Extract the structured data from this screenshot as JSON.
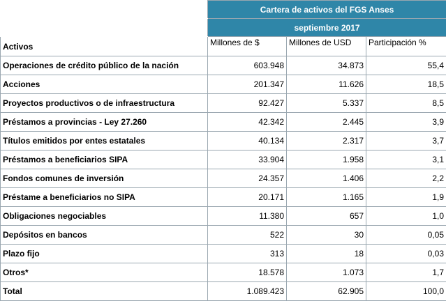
{
  "header": {
    "title": "Cartera de activos del FGS Anses",
    "period": "septiembre 2017"
  },
  "columns": {
    "label": "Activos",
    "millones_pesos": "Millones de $",
    "millones_usd": "Millones de USD",
    "participacion": "Participación %"
  },
  "rows": [
    {
      "label": "Operaciones de crédito público de la nación",
      "pesos": "603.948",
      "usd": "34.873",
      "pct": "55,4"
    },
    {
      "label": "Acciones",
      "pesos": "201.347",
      "usd": "11.626",
      "pct": "18,5"
    },
    {
      "label": "Proyectos productivos o de infraestructura",
      "pesos": "92.427",
      "usd": "5.337",
      "pct": "8,5"
    },
    {
      "label": "Préstamos a provincias - Ley 27.260",
      "pesos": "42.342",
      "usd": "2.445",
      "pct": "3,9"
    },
    {
      "label": "Títulos emitidos por entes estatales",
      "pesos": "40.134",
      "usd": "2.317",
      "pct": "3,7"
    },
    {
      "label": "Préstamos a beneficiarios SIPA",
      "pesos": "33.904",
      "usd": "1.958",
      "pct": "3,1"
    },
    {
      "label": "Fondos comunes de inversión",
      "pesos": "24.357",
      "usd": "1.406",
      "pct": "2,2"
    },
    {
      "label": "Préstame a beneficiarios no SIPA",
      "pesos": "20.171",
      "usd": "1.165",
      "pct": "1,9"
    },
    {
      "label": "Obligaciones negociables",
      "pesos": "11.380",
      "usd": "657",
      "pct": "1,0"
    },
    {
      "label": "Depósitos en bancos",
      "pesos": "522",
      "usd": "30",
      "pct": "0,05"
    },
    {
      "label": "Plazo fijo",
      "pesos": "313",
      "usd": "18",
      "pct": "0,03"
    },
    {
      "label": "Otros*",
      "pesos": "18.578",
      "usd": "1.073",
      "pct": "1,7"
    },
    {
      "label": "Total",
      "pesos": "1.089.423",
      "usd": "62.905",
      "pct": "100,0"
    }
  ]
}
